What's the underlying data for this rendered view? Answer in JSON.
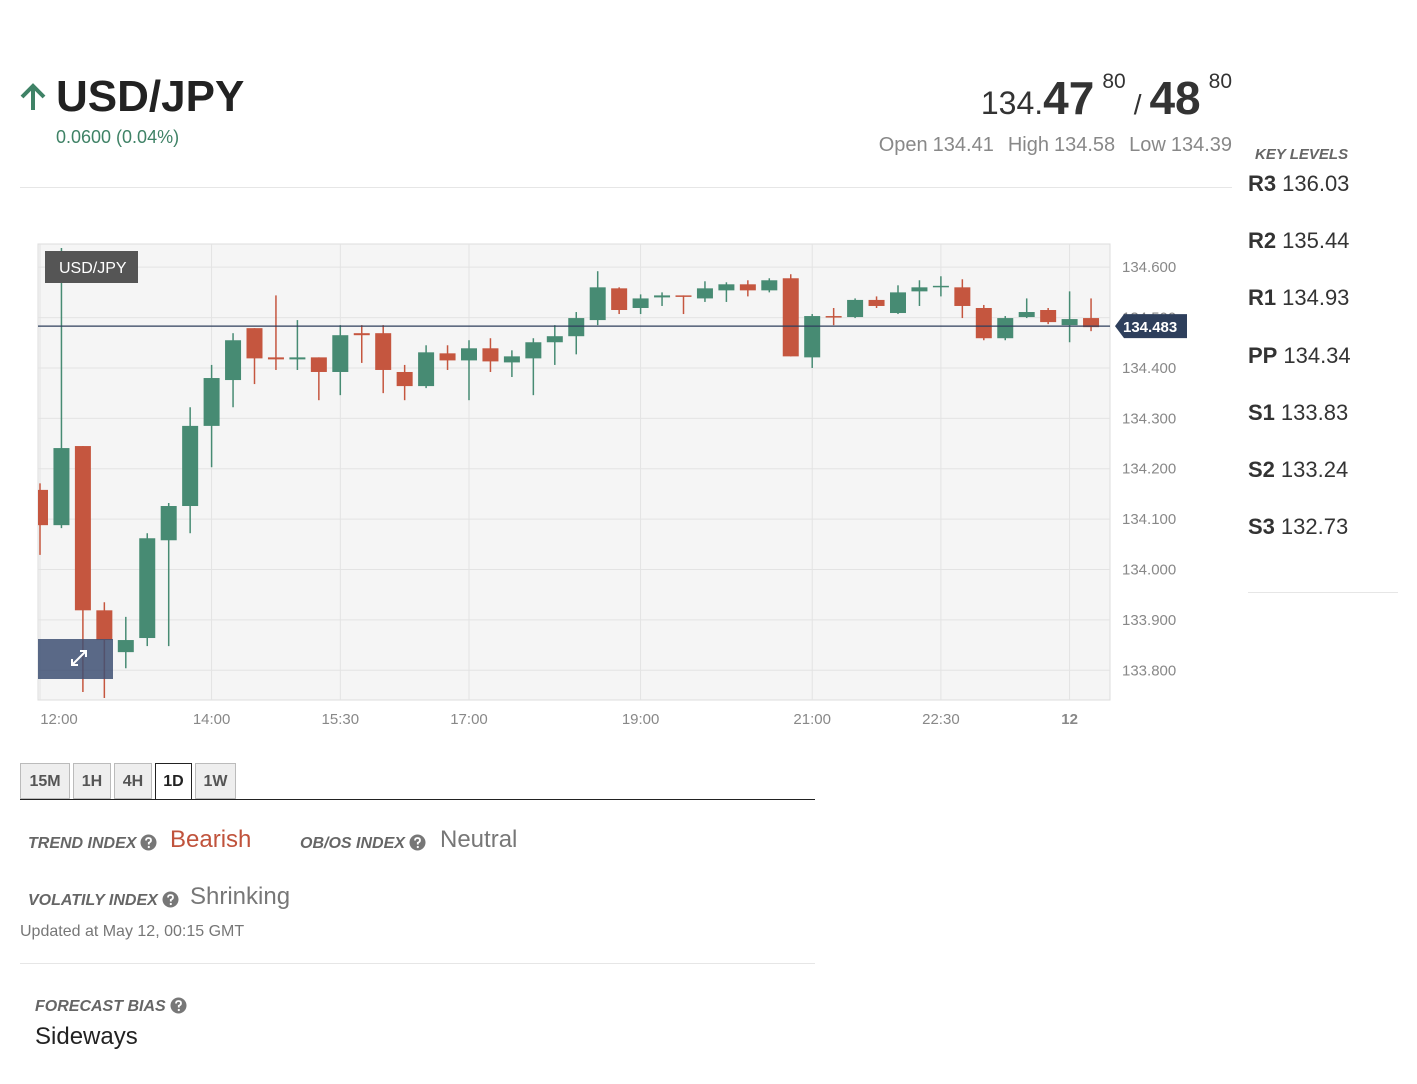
{
  "header": {
    "pair": "USD/JPY",
    "change": "0.0600 (0.04%)",
    "price": {
      "handle": "134.",
      "bid": "47",
      "bid_pip": "80",
      "separator": "/",
      "ask": "48",
      "ask_pip": "80"
    },
    "stats": [
      {
        "label": "Open",
        "value": "134.41"
      },
      {
        "label": "High",
        "value": "134.58"
      },
      {
        "label": "Low",
        "value": "134.39"
      }
    ]
  },
  "key_levels": {
    "title": "KEY LEVELS",
    "levels": [
      {
        "name": "R3",
        "value": "136.03"
      },
      {
        "name": "R2",
        "value": "135.44"
      },
      {
        "name": "R1",
        "value": "134.93"
      },
      {
        "name": "PP",
        "value": "134.34"
      },
      {
        "name": "S1",
        "value": "133.83"
      },
      {
        "name": "S2",
        "value": "133.24"
      },
      {
        "name": "S3",
        "value": "132.73"
      }
    ]
  },
  "chart_data": {
    "type": "candlestick",
    "label": "USD/JPY",
    "categories": [
      "12:00",
      null,
      null,
      null,
      null,
      null,
      null,
      null,
      "14:00",
      null,
      null,
      null,
      null,
      null,
      "15:30",
      null,
      null,
      null,
      null,
      null,
      "17:00",
      null,
      null,
      null,
      null,
      null,
      null,
      null,
      "19:00",
      null,
      null,
      null,
      null,
      null,
      null,
      null,
      "21:00",
      null,
      null,
      null,
      null,
      null,
      "22:30",
      null,
      null,
      null,
      null,
      null,
      "12",
      null
    ],
    "open": [
      134.158,
      134.088,
      134.245,
      133.919,
      133.836,
      133.864,
      134.058,
      134.126,
      134.285,
      134.376,
      134.479,
      134.421,
      134.417,
      134.421,
      134.392,
      134.469,
      134.469,
      134.392,
      134.364,
      134.429,
      134.415,
      134.439,
      134.411,
      134.419,
      134.451,
      134.463,
      134.495,
      134.558,
      134.519,
      134.54,
      134.544,
      134.538,
      134.554,
      134.566,
      134.554,
      134.578,
      134.421,
      134.503,
      134.501,
      134.535,
      134.509,
      134.552,
      134.561,
      134.56,
      134.519,
      134.459,
      134.501,
      134.515,
      134.485,
      134.499
    ],
    "high": [
      134.171,
      134.638,
      134.245,
      133.935,
      133.906,
      134.072,
      134.132,
      134.322,
      134.406,
      134.469,
      134.479,
      134.544,
      134.495,
      134.421,
      134.485,
      134.485,
      134.485,
      134.406,
      134.445,
      134.445,
      134.455,
      134.459,
      134.435,
      134.459,
      134.485,
      134.511,
      134.592,
      134.56,
      134.546,
      134.55,
      134.544,
      134.572,
      134.57,
      134.574,
      134.578,
      134.586,
      134.507,
      134.519,
      134.538,
      134.542,
      134.564,
      134.574,
      134.582,
      134.576,
      134.525,
      134.503,
      134.538,
      134.519,
      134.552,
      134.538
    ],
    "low": [
      134.029,
      134.082,
      133.757,
      133.745,
      133.804,
      133.848,
      133.848,
      134.072,
      134.203,
      134.322,
      134.368,
      134.396,
      134.396,
      134.336,
      134.346,
      134.41,
      134.35,
      134.336,
      134.36,
      134.396,
      134.336,
      134.392,
      134.382,
      134.346,
      134.406,
      134.427,
      134.485,
      134.507,
      134.507,
      134.523,
      134.507,
      134.531,
      134.531,
      134.542,
      134.55,
      134.423,
      134.4,
      134.485,
      134.499,
      134.519,
      134.507,
      134.523,
      134.542,
      134.499,
      134.455,
      134.455,
      134.499,
      134.487,
      134.451,
      134.473
    ],
    "close": [
      134.088,
      134.241,
      133.919,
      133.86,
      133.86,
      134.062,
      134.126,
      134.285,
      134.38,
      134.455,
      134.419,
      134.417,
      134.421,
      134.392,
      134.465,
      134.465,
      134.396,
      134.364,
      134.431,
      134.415,
      134.439,
      134.413,
      134.423,
      134.451,
      134.463,
      134.499,
      134.56,
      134.515,
      134.538,
      134.544,
      134.542,
      134.558,
      134.566,
      134.554,
      134.574,
      134.423,
      134.503,
      134.501,
      134.535,
      134.523,
      134.55,
      134.56,
      134.563,
      134.523,
      134.459,
      134.499,
      134.511,
      134.491,
      134.497,
      134.481
    ],
    "up_color": "#478b73",
    "down_color": "#c5563f",
    "last_price": 134.483,
    "ylim": [
      133.741,
      134.646
    ],
    "yticks": [
      {
        "value": 133.8,
        "label": "133.800"
      },
      {
        "value": 133.9,
        "label": "133.900"
      },
      {
        "value": 134.0,
        "label": "134.000"
      },
      {
        "value": 134.1,
        "label": "134.100"
      },
      {
        "value": 134.2,
        "label": "134.200"
      },
      {
        "value": 134.3,
        "label": "134.300"
      },
      {
        "value": 134.4,
        "label": "134.400"
      },
      {
        "value": 134.5,
        "label": "134.500"
      },
      {
        "value": 134.6,
        "label": "134.600"
      }
    ],
    "grid": true
  },
  "tabs": {
    "items": [
      "15M",
      "1H",
      "4H",
      "1D",
      "1W"
    ],
    "active": 3
  },
  "indices": [
    {
      "label": "TREND INDEX",
      "value": "Bearish"
    },
    {
      "label": "OB/OS INDEX",
      "value": "Neutral"
    },
    {
      "label": "VOLATILY INDEX",
      "value": "Shrinking"
    }
  ],
  "updated": "Updated at May 12, 00:15 GMT",
  "forecast": {
    "label": "FORECAST BIAS",
    "value": "Sideways"
  }
}
